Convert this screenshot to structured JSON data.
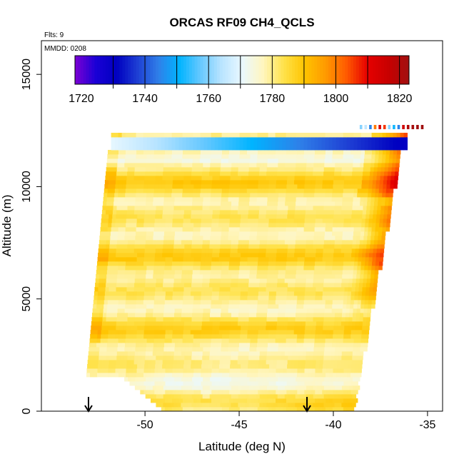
{
  "chart_data": {
    "type": "heatmap",
    "title": "ORCAS RF09 CH4_QCLS",
    "xlabel": "Latitude (deg N)",
    "ylabel": "Altitude (m)",
    "xlim": [
      -55.5,
      -34.2
    ],
    "ylim": [
      0,
      16500
    ],
    "x_ticks": [
      -50,
      -45,
      -40,
      -35
    ],
    "y_ticks": [
      0,
      5000,
      10000,
      15000
    ],
    "flights_label": "Flts: 9",
    "date_label": "MMDD: 0208",
    "arrow_latitudes": [
      -53.0,
      -41.4
    ],
    "colorbar": {
      "min": 1718,
      "max": 1823,
      "ticks": [
        1720,
        1740,
        1760,
        1780,
        1800,
        1820
      ],
      "colors": [
        "#7b00d4",
        "#1a00d6",
        "#0000c0",
        "#1e3fd4",
        "#2f7fe8",
        "#00b4ff",
        "#66c8ff",
        "#b8e4ff",
        "#eaf8ff",
        "#fff6c0",
        "#ffe24a",
        "#ffc400",
        "#ff9a00",
        "#ff5a00",
        "#e60000",
        "#c80000",
        "#a01010"
      ]
    },
    "grid": false,
    "legend": "top-colorbar"
  }
}
